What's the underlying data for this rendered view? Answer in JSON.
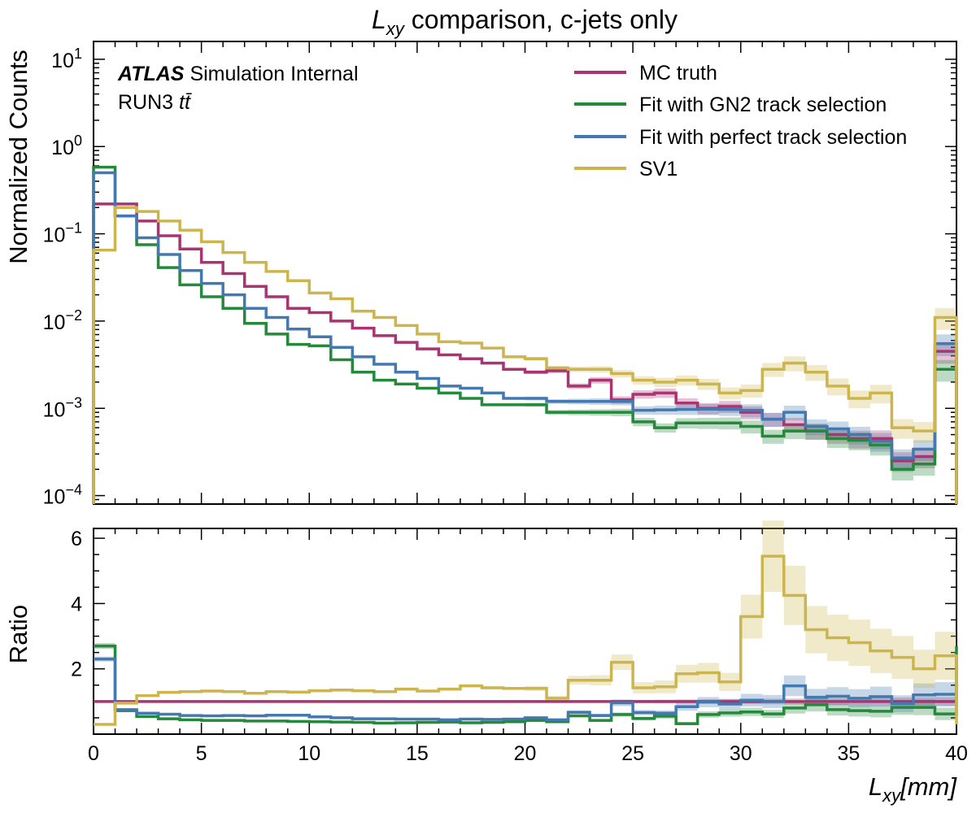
{
  "chart_data": [
    {
      "type": "line",
      "drawstyle": "steps",
      "title": "comparison, c-jets only",
      "title_var": "L",
      "title_sub": "xy",
      "ylabel": "Normalized Counts",
      "yscale": "log",
      "ylim": [
        8e-05,
        16
      ],
      "xlim": [
        0,
        40
      ],
      "yticks": [
        {
          "base": "10",
          "exp": "1",
          "value": 10
        },
        {
          "base": "10",
          "exp": "0",
          "value": 1
        },
        {
          "base": "10",
          "exp": "−1",
          "value": 0.1
        },
        {
          "base": "10",
          "exp": "−2",
          "value": 0.01
        },
        {
          "base": "10",
          "exp": "−3",
          "value": 0.001
        },
        {
          "base": "10",
          "exp": "−4",
          "value": 0.0001
        }
      ],
      "annotation": {
        "experiment": "ATLAS",
        "status": "Simulation Internal",
        "sample_prefix": "RUN3",
        "sample": "tt̄"
      },
      "legend_position": "top-right",
      "x_edges": [
        0,
        1,
        2,
        3,
        4,
        5,
        6,
        7,
        8,
        9,
        10,
        11,
        12,
        13,
        14,
        15,
        16,
        17,
        18,
        19,
        20,
        21,
        22,
        23,
        24,
        25,
        26,
        27,
        28,
        29,
        30,
        31,
        32,
        33,
        34,
        35,
        36,
        37,
        38,
        39,
        40
      ],
      "series": [
        {
          "name": "MC truth",
          "color": "#a93472",
          "values": [
            0.22,
            0.22,
            0.14,
            0.095,
            0.067,
            0.047,
            0.035,
            0.025,
            0.019,
            0.014,
            0.0125,
            0.01,
            0.0083,
            0.0068,
            0.0057,
            0.0048,
            0.0041,
            0.0037,
            0.0033,
            0.0028,
            0.0026,
            0.0027,
            0.0018,
            0.0021,
            0.00125,
            0.00145,
            0.0015,
            0.00115,
            0.001,
            0.00105,
            0.0009,
            0.00075,
            0.00065,
            0.00055,
            0.0005,
            0.00045,
            0.00045,
            0.00025,
            0.00028,
            0.0045
          ]
        },
        {
          "name": "Fit with GN2 track selection",
          "color": "#24893a",
          "values": [
            0.58,
            0.16,
            0.075,
            0.041,
            0.026,
            0.019,
            0.014,
            0.0094,
            0.0071,
            0.0054,
            0.0052,
            0.0036,
            0.0026,
            0.0021,
            0.0019,
            0.0017,
            0.0015,
            0.0013,
            0.0011,
            0.0011,
            0.0011,
            0.0009,
            0.0009,
            0.0009,
            0.0009,
            0.0007,
            0.0006,
            0.00068,
            0.00068,
            0.00068,
            0.00062,
            0.00048,
            0.00055,
            0.00055,
            0.00045,
            0.00043,
            0.00038,
            0.0002,
            0.00023,
            0.0028
          ]
        },
        {
          "name": "Fit with perfect track selection",
          "color": "#4379b0",
          "values": [
            0.5,
            0.16,
            0.09,
            0.058,
            0.038,
            0.027,
            0.02,
            0.014,
            0.011,
            0.0081,
            0.0066,
            0.005,
            0.0039,
            0.0032,
            0.0026,
            0.0022,
            0.0018,
            0.0017,
            0.0015,
            0.0013,
            0.0013,
            0.0012,
            0.0012,
            0.0012,
            0.0012,
            0.00095,
            0.00096,
            0.00097,
            0.00098,
            0.00097,
            0.00095,
            0.00075,
            0.0009,
            0.00062,
            0.00058,
            0.0005,
            0.00042,
            0.00027,
            0.00034,
            0.0055
          ]
        },
        {
          "name": "SV1",
          "color": "#cdb54e",
          "values": [
            0.065,
            0.2,
            0.18,
            0.14,
            0.11,
            0.081,
            0.061,
            0.047,
            0.037,
            0.029,
            0.021,
            0.018,
            0.013,
            0.011,
            0.0089,
            0.0071,
            0.0058,
            0.0056,
            0.0049,
            0.0039,
            0.0037,
            0.0029,
            0.0028,
            0.0028,
            0.0025,
            0.0021,
            0.002,
            0.0021,
            0.0019,
            0.0015,
            0.0016,
            0.0028,
            0.0033,
            0.0026,
            0.0018,
            0.0013,
            0.0015,
            0.0006,
            0.00055,
            0.011
          ]
        }
      ]
    },
    {
      "type": "line",
      "drawstyle": "steps",
      "ylabel": "Ratio",
      "ylim": [
        0,
        6.3
      ],
      "xlim": [
        0,
        40
      ],
      "xlabel": "L",
      "xlabel_sub": "xy",
      "xlabel_unit": "[mm]",
      "xticks": [
        0,
        5,
        10,
        15,
        20,
        25,
        30,
        35,
        40
      ],
      "yticks": [
        2,
        4,
        6
      ],
      "x_edges": [
        0,
        1,
        2,
        3,
        4,
        5,
        6,
        7,
        8,
        9,
        10,
        11,
        12,
        13,
        14,
        15,
        16,
        17,
        18,
        19,
        20,
        21,
        22,
        23,
        24,
        25,
        26,
        27,
        28,
        29,
        30,
        31,
        32,
        33,
        34,
        35,
        36,
        37,
        38,
        39,
        40
      ],
      "series": [
        {
          "name": "MC truth",
          "color": "#a93472",
          "values": [
            1,
            1,
            1,
            1,
            1,
            1,
            1,
            1,
            1,
            1,
            1,
            1,
            1,
            1,
            1,
            1,
            1,
            1,
            1,
            1,
            1,
            1,
            1,
            1,
            1,
            1,
            1,
            1,
            1,
            1,
            1,
            1,
            1,
            1,
            1,
            1,
            1,
            1,
            1,
            1
          ]
        },
        {
          "name": "Fit with GN2 track selection",
          "color": "#24893a",
          "values": [
            2.7,
            0.72,
            0.54,
            0.47,
            0.44,
            0.42,
            0.42,
            0.4,
            0.4,
            0.39,
            0.38,
            0.37,
            0.36,
            0.34,
            0.35,
            0.36,
            0.37,
            0.35,
            0.36,
            0.38,
            0.42,
            0.38,
            0.56,
            0.42,
            0.6,
            0.48,
            0.55,
            0.32,
            0.6,
            0.65,
            0.68,
            0.62,
            0.8,
            0.9,
            0.75,
            0.72,
            0.7,
            0.82,
            0.82,
            0.62
          ]
        },
        {
          "name": "Fit with perfect track selection",
          "color": "#4379b0",
          "values": [
            2.3,
            0.75,
            0.64,
            0.61,
            0.57,
            0.56,
            0.57,
            0.56,
            0.58,
            0.58,
            0.53,
            0.5,
            0.47,
            0.47,
            0.46,
            0.46,
            0.44,
            0.46,
            0.45,
            0.46,
            0.5,
            0.44,
            0.67,
            0.57,
            0.96,
            0.66,
            0.64,
            0.84,
            0.98,
            0.92,
            1.04,
            1.0,
            1.48,
            1.13,
            1.16,
            1.1,
            1.15,
            0.93,
            1.2,
            1.22
          ]
        },
        {
          "name": "SV1",
          "color": "#cdb54e",
          "values": [
            0.3,
            0.95,
            1.18,
            1.28,
            1.3,
            1.32,
            1.3,
            1.25,
            1.3,
            1.29,
            1.33,
            1.35,
            1.33,
            1.3,
            1.38,
            1.32,
            1.38,
            1.48,
            1.42,
            1.4,
            1.4,
            1.1,
            1.65,
            1.65,
            2.2,
            1.42,
            1.45,
            1.85,
            1.88,
            1.6,
            3.6,
            5.45,
            4.25,
            3.2,
            2.95,
            2.8,
            2.55,
            2.35,
            2.0,
            2.4
          ]
        }
      ]
    }
  ]
}
